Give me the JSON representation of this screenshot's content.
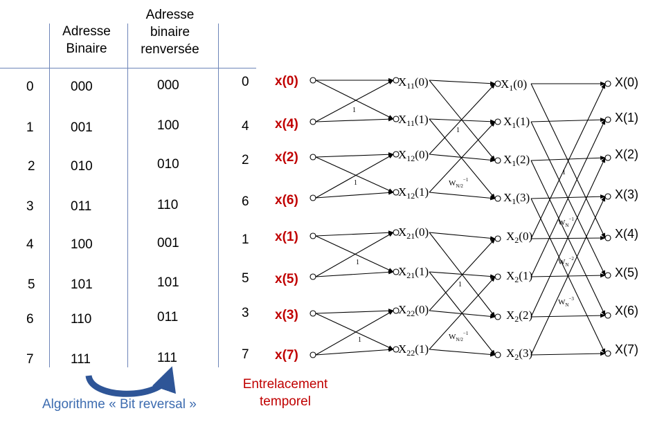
{
  "table": {
    "headers": {
      "addr": [
        "Adresse",
        "Binaire"
      ],
      "rev": [
        "Adresse",
        "binaire",
        "renversée"
      ]
    },
    "rows": [
      {
        "index": "0",
        "binary": "000",
        "reversed": "000"
      },
      {
        "index": "1",
        "binary": "001",
        "reversed": "100"
      },
      {
        "index": "2",
        "binary": "010",
        "reversed": "010"
      },
      {
        "index": "3",
        "binary": "011",
        "reversed": "110"
      },
      {
        "index": "4",
        "binary": "100",
        "reversed": "001"
      },
      {
        "index": "5",
        "binary": "101",
        "reversed": "101"
      },
      {
        "index": "6",
        "binary": "110",
        "reversed": "011"
      },
      {
        "index": "7",
        "binary": "111",
        "reversed": "111"
      }
    ]
  },
  "reordered_indices": [
    "0",
    "4",
    "2",
    "6",
    "1",
    "5",
    "3",
    "7"
  ],
  "inputs": [
    "x(0)",
    "x(4)",
    "x(2)",
    "x(6)",
    "x(1)",
    "x(5)",
    "x(3)",
    "x(7)"
  ],
  "stage1": [
    {
      "base": "X",
      "sub": "11",
      "arg": "(0)"
    },
    {
      "base": "X",
      "sub": "11",
      "arg": "(1)"
    },
    {
      "base": "X",
      "sub": "12",
      "arg": "(0)"
    },
    {
      "base": "X",
      "sub": "12",
      "arg": "(1)"
    },
    {
      "base": "X",
      "sub": "21",
      "arg": "(0)"
    },
    {
      "base": "X",
      "sub": "21",
      "arg": "(1)"
    },
    {
      "base": "X",
      "sub": "22",
      "arg": "(0)"
    },
    {
      "base": "X",
      "sub": "22",
      "arg": "(1)"
    }
  ],
  "stage2": [
    {
      "base": "X",
      "sub": "1",
      "arg": "(0)"
    },
    {
      "base": "X",
      "sub": "1",
      "arg": "(1)"
    },
    {
      "base": "X",
      "sub": "1",
      "arg": "(2)"
    },
    {
      "base": "X",
      "sub": "1",
      "arg": "(3)"
    },
    {
      "base": "X",
      "sub": "2",
      "arg": "(0)"
    },
    {
      "base": "X",
      "sub": "2",
      "arg": "(1)"
    },
    {
      "base": "X",
      "sub": "2",
      "arg": "(2)"
    },
    {
      "base": "X",
      "sub": "2",
      "arg": "(3)"
    }
  ],
  "outputs": [
    "X(0)",
    "X(1)",
    "X(2)",
    "X(3)",
    "X(4)",
    "X(5)",
    "X(6)",
    "X(7)"
  ],
  "twiddles": {
    "one": "1",
    "wn2": {
      "base": "W",
      "sub": "N/2",
      "sup": "−1"
    },
    "wn1": {
      "base": "W",
      "sub": "N",
      "sup": "−1"
    },
    "wn2b": {
      "base": "W",
      "sub": "N",
      "sup": "−2"
    },
    "wn3": {
      "base": "W",
      "sub": "N",
      "sup": "−3"
    }
  },
  "captions": {
    "interleave": [
      "Entrelacement",
      "temporel"
    ],
    "algorithm": "Algorithme « Bit reversal »"
  },
  "colors": {
    "table_lines": "#6c84b8",
    "input_red": "#c00000",
    "caption_blue": "#3d6cb0",
    "arrow_blue": "#2e5597"
  }
}
